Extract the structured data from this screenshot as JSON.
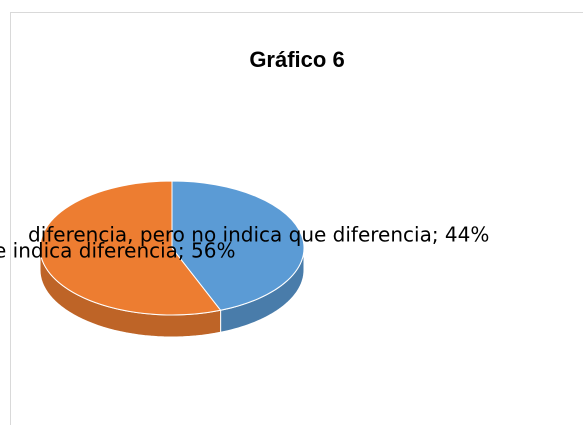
{
  "chart_data": {
    "type": "pie3d",
    "title": "Gráfico 6",
    "values": [
      44,
      56
    ],
    "value_labels": [
      "diferencia, pero no indica que diferencia; 44%",
      "e indica diferencia; 56%"
    ],
    "colors": [
      "#5b9bd5",
      "#ed7d31"
    ]
  }
}
